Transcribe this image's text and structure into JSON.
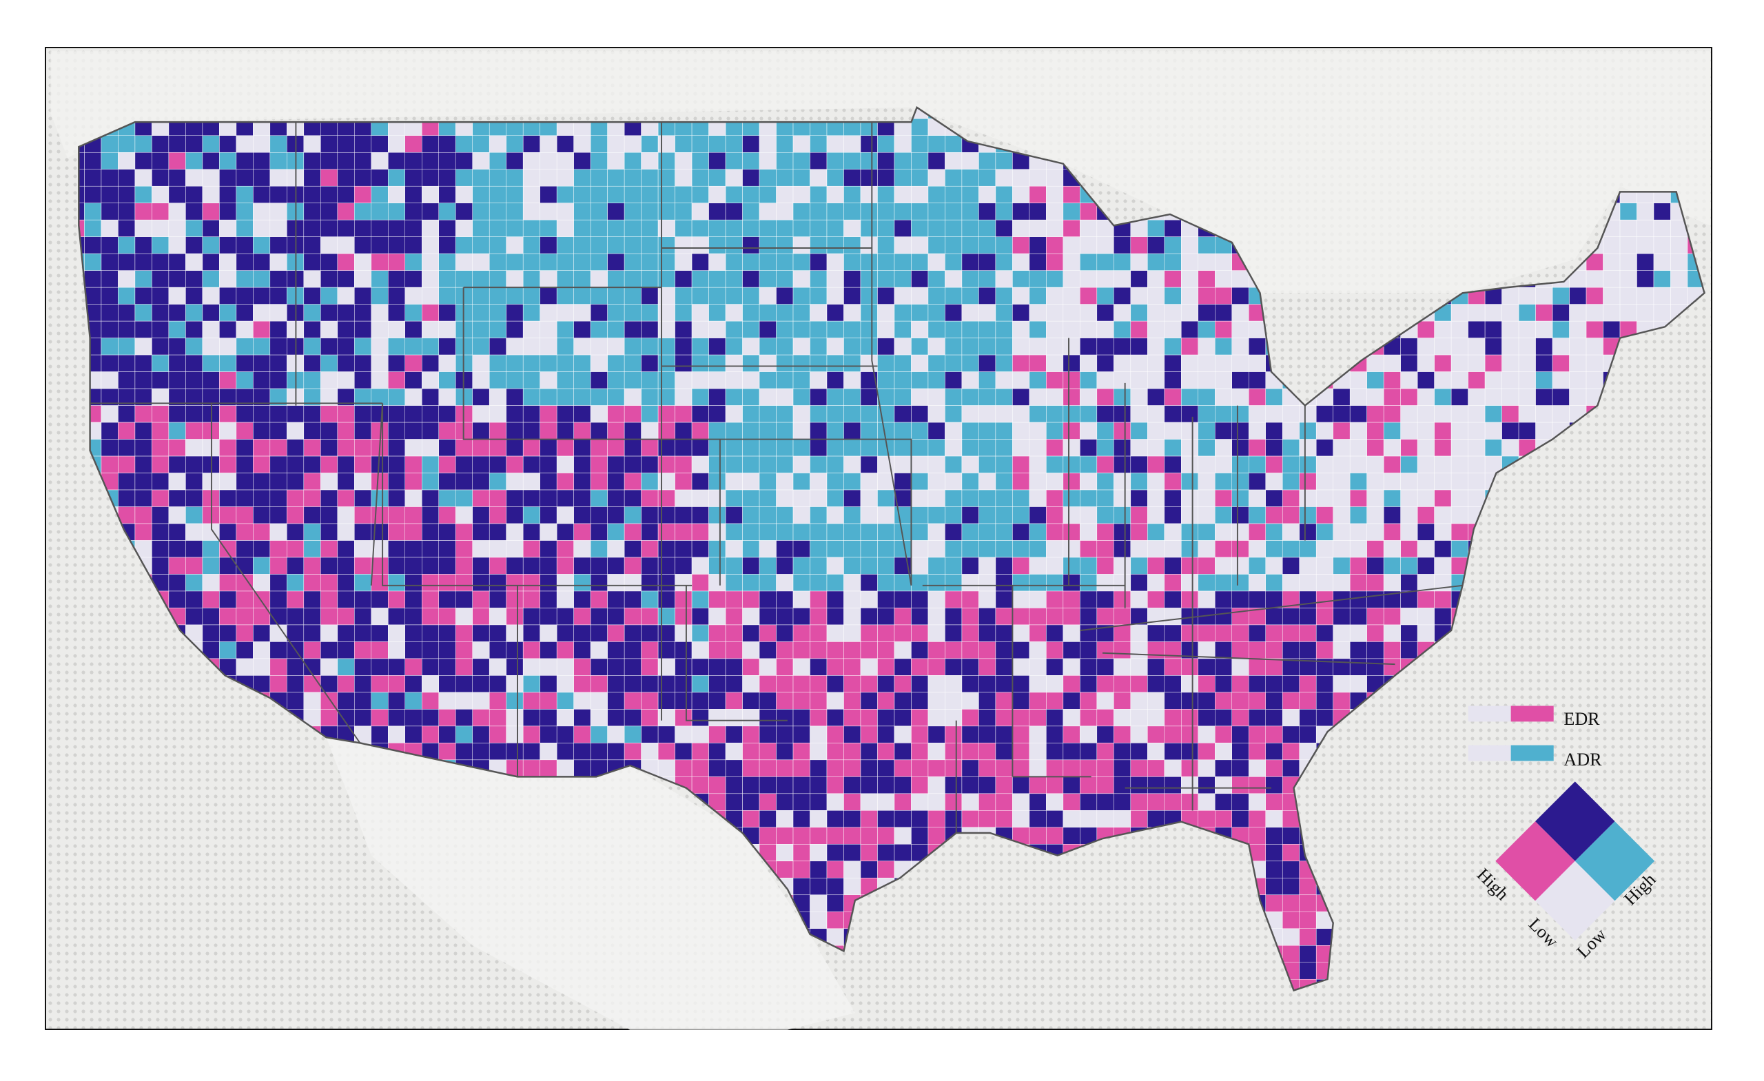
{
  "legend": {
    "edr_label": "EDR",
    "adr_label": "ADR",
    "axis_labels": {
      "left_high": "High",
      "left_low": "Low",
      "right_low": "Low",
      "right_high": "High"
    }
  },
  "colors": {
    "low_low": "#e6e4f0",
    "high_edr": "#e04fa6",
    "high_adr": "#4fb0cf",
    "high_both": "#2c1a8f",
    "border": "#555555",
    "background": "#ececea"
  }
}
